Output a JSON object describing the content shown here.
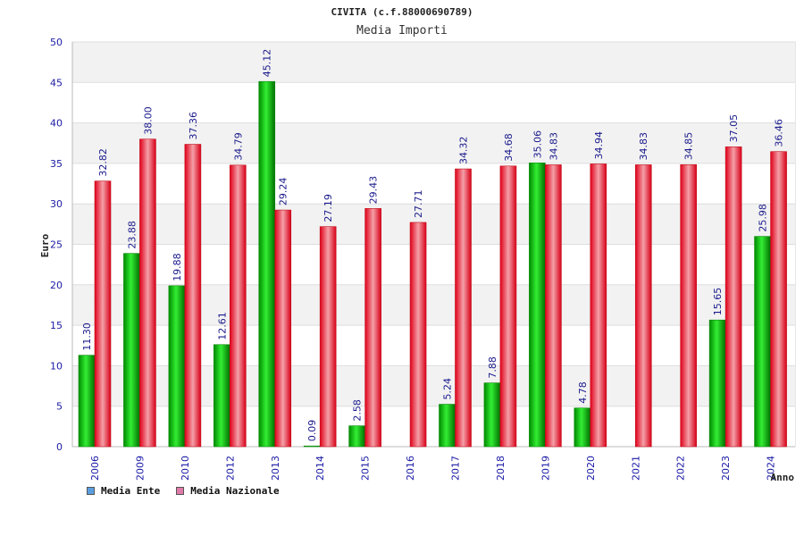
{
  "chart_data": {
    "type": "bar",
    "title": "CIVITA (c.f.88000690789)",
    "subtitle": "Media Importi",
    "xlabel": "Anno",
    "ylabel": "Euro",
    "ylim": [
      0,
      50
    ],
    "yticks": [
      0,
      5,
      10,
      15,
      20,
      25,
      30,
      35,
      40,
      45,
      50
    ],
    "grid": true,
    "legend_position": "bottom-left",
    "categories": [
      "2006",
      "2009",
      "2010",
      "2012",
      "2013",
      "2014",
      "2015",
      "2016",
      "2017",
      "2018",
      "2019",
      "2020",
      "2021",
      "2022",
      "2023",
      "2024"
    ],
    "series": [
      {
        "name": "Media Ente",
        "color": "#00b000",
        "legend_color": "#5b9ee0",
        "values": [
          11.3,
          23.88,
          19.88,
          12.61,
          45.12,
          0.09,
          2.58,
          null,
          5.24,
          7.88,
          35.06,
          4.78,
          null,
          null,
          15.65,
          25.98
        ],
        "labels": [
          "11.30",
          "23.88",
          "19.88",
          "12.61",
          "45.12",
          "0.09",
          "2.58",
          "",
          "5.24",
          "7.88",
          "35.06",
          "4.78",
          "",
          "",
          "15.65",
          "25.98"
        ]
      },
      {
        "name": "Media Nazionale",
        "color": "#e0101c",
        "legend_color": "#e07aa8",
        "values": [
          32.82,
          38.0,
          37.36,
          34.79,
          29.24,
          27.19,
          29.43,
          27.71,
          34.32,
          34.68,
          34.83,
          34.94,
          34.83,
          34.85,
          37.05,
          36.46
        ],
        "labels": [
          "32.82",
          "38.00",
          "37.36",
          "34.79",
          "29.24",
          "27.19",
          "29.43",
          "27.71",
          "34.32",
          "34.68",
          "34.83",
          "34.94",
          "34.83",
          "34.85",
          "37.05",
          "36.46"
        ]
      }
    ]
  }
}
